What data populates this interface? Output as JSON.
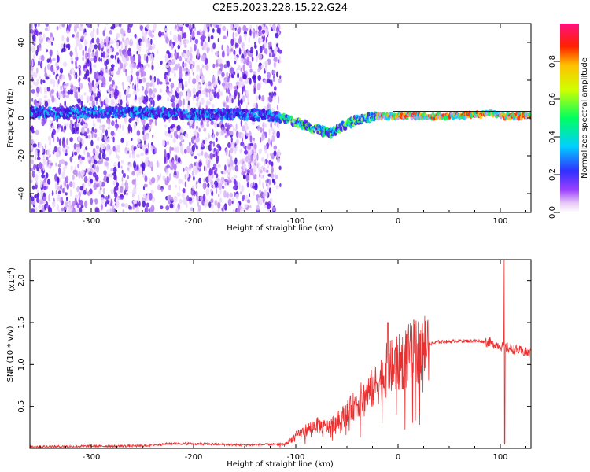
{
  "chart_data": [
    {
      "type": "heatmap",
      "title": "C2E5.2023.228.15.22.G24",
      "xlabel": "Height of straight line (km)",
      "ylabel": "Frequency (Hz)",
      "xlim": [
        -360,
        130
      ],
      "ylim": [
        -50,
        50
      ],
      "xticks": [
        -300,
        -200,
        -100,
        0,
        100
      ],
      "yticks": [
        -40,
        -20,
        0,
        20,
        40
      ],
      "colorbar": {
        "label": "Normalized spectral amplitude",
        "range": [
          0,
          1
        ],
        "ticks": [
          "0.0",
          "0.2",
          "0.4",
          "0.6",
          "0.8"
        ],
        "colormap": "hsv-like (white, purple, blue, cyan, green, yellow, red, magenta)"
      },
      "trace": {
        "x": [
          -360,
          -300,
          -250,
          -200,
          -150,
          -120,
          -100,
          -80,
          -65,
          -50,
          -40,
          -30,
          -20,
          0,
          50,
          80,
          90,
          100,
          130
        ],
        "y": [
          3,
          3,
          3,
          2,
          2,
          1,
          -2,
          -6,
          -8,
          -3,
          -1,
          0,
          1,
          1,
          1,
          2,
          3,
          1,
          1
        ]
      }
    },
    {
      "type": "line",
      "xlabel": "Height of straight line (km)",
      "ylabel": "SNR (10 * v/v)",
      "y_scale_label": "(x10",
      "y_scale_exp": "4",
      "y_scale_close": ")",
      "xlim": [
        -360,
        130
      ],
      "ylim": [
        0,
        2.25
      ],
      "xticks": [
        -300,
        -200,
        -100,
        0,
        100
      ],
      "yticks": [
        "0.5",
        "1.0",
        "1.5",
        "2.0"
      ],
      "series": [
        {
          "color": "#e83030",
          "x": [
            -360,
            -250,
            -220,
            -150,
            -110,
            -100,
            -90,
            -80,
            -70,
            -60,
            -50,
            -40,
            -30,
            -20,
            -10,
            0,
            10,
            20,
            30,
            40,
            60,
            80,
            90,
            100,
            104,
            110,
            130
          ],
          "y": [
            0.02,
            0.03,
            0.06,
            0.04,
            0.05,
            0.15,
            0.22,
            0.28,
            0.25,
            0.32,
            0.42,
            0.55,
            0.65,
            0.78,
            0.95,
            1.0,
            1.1,
            1.18,
            1.24,
            1.27,
            1.28,
            1.28,
            1.26,
            1.22,
            1.2,
            1.19,
            1.13
          ]
        }
      ]
    }
  ]
}
